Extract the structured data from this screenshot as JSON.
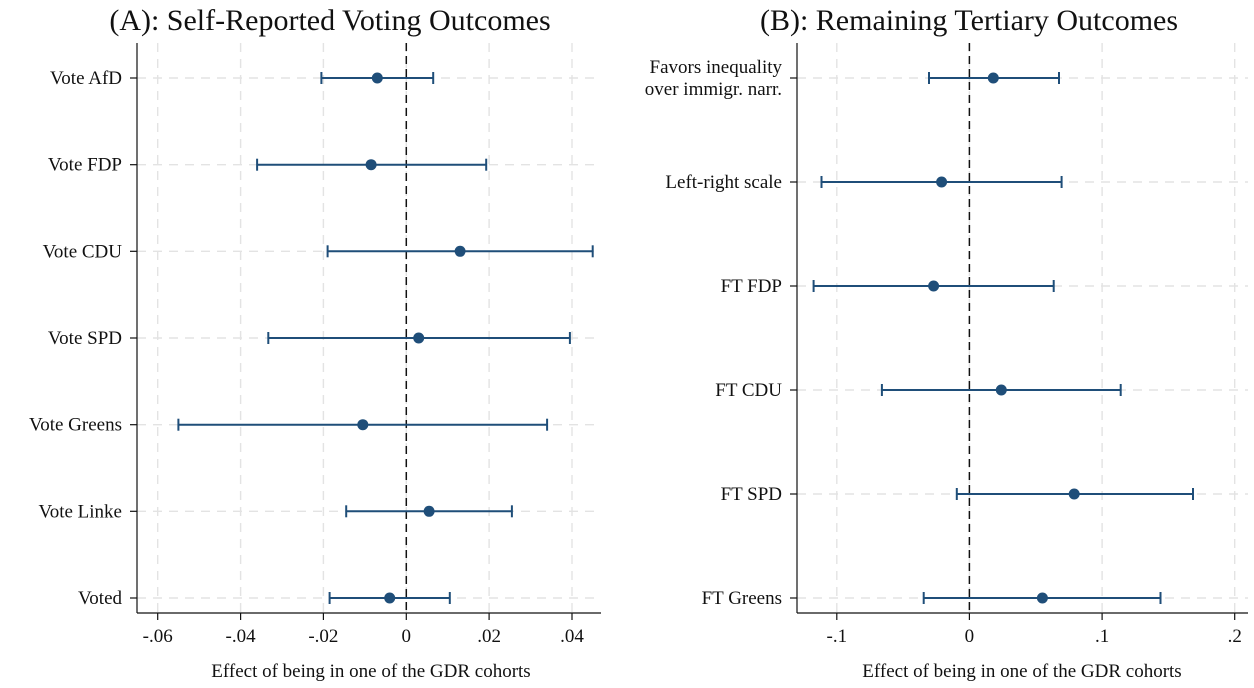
{
  "colors": {
    "marker": "#1f4e79",
    "ci_line": "#1f4e79",
    "grid": "#e3e3e3",
    "axis": "#111111",
    "zero_line": "#111111"
  },
  "chart_data": [
    {
      "type": "coefficient-plot",
      "title": "(A): Self-Reported Voting Outcomes",
      "xlabel": "Effect of being in one of the GDR cohorts",
      "ylabel": "",
      "xlim": [
        -0.065,
        0.047
      ],
      "xticks": [
        -0.06,
        -0.04,
        -0.02,
        0,
        0.02,
        0.04
      ],
      "xtick_labels": [
        "-.06",
        "-.04",
        "-.02",
        "0",
        ".02",
        ".04"
      ],
      "zero_line": 0,
      "grid": true,
      "categories": [
        {
          "label": [
            "Vote AfD"
          ],
          "estimate": -0.007,
          "ci": [
            -0.0205,
            0.0065
          ]
        },
        {
          "label": [
            "Vote FDP"
          ],
          "estimate": -0.0085,
          "ci": [
            -0.036,
            0.0193
          ]
        },
        {
          "label": [
            "Vote CDU"
          ],
          "estimate": 0.013,
          "ci": [
            -0.019,
            0.045
          ]
        },
        {
          "label": [
            "Vote SPD"
          ],
          "estimate": 0.003,
          "ci": [
            -0.0333,
            0.0395
          ]
        },
        {
          "label": [
            "Vote Greens"
          ],
          "estimate": -0.0105,
          "ci": [
            -0.055,
            0.034
          ]
        },
        {
          "label": [
            "Vote Linke"
          ],
          "estimate": 0.0055,
          "ci": [
            -0.0145,
            0.0255
          ]
        },
        {
          "label": [
            "Voted"
          ],
          "estimate": -0.004,
          "ci": [
            -0.0185,
            0.0105
          ]
        }
      ]
    },
    {
      "type": "coefficient-plot",
      "title": "(B): Remaining Tertiary Outcomes",
      "xlabel": "Effect of being in one of the GDR cohorts",
      "ylabel": "",
      "xlim": [
        -0.13,
        0.21
      ],
      "xticks": [
        -0.1,
        0,
        0.1,
        0.2
      ],
      "xtick_labels": [
        "-.1",
        "0",
        ".1",
        ".2"
      ],
      "zero_line": 0,
      "grid": true,
      "categories": [
        {
          "label": [
            "Favors inequality",
            "over immigr. narr."
          ],
          "estimate": 0.018,
          "ci": [
            -0.0305,
            0.0675
          ]
        },
        {
          "label": [
            "Left-right scale"
          ],
          "estimate": -0.021,
          "ci": [
            -0.1115,
            0.0695
          ]
        },
        {
          "label": [
            "FT FDP"
          ],
          "estimate": -0.027,
          "ci": [
            -0.1175,
            0.0635
          ]
        },
        {
          "label": [
            "FT CDU"
          ],
          "estimate": 0.024,
          "ci": [
            -0.066,
            0.114
          ]
        },
        {
          "label": [
            "FT SPD"
          ],
          "estimate": 0.079,
          "ci": [
            -0.0095,
            0.1685
          ]
        },
        {
          "label": [
            "FT Greens"
          ],
          "estimate": 0.055,
          "ci": [
            -0.0345,
            0.144
          ]
        }
      ]
    }
  ]
}
